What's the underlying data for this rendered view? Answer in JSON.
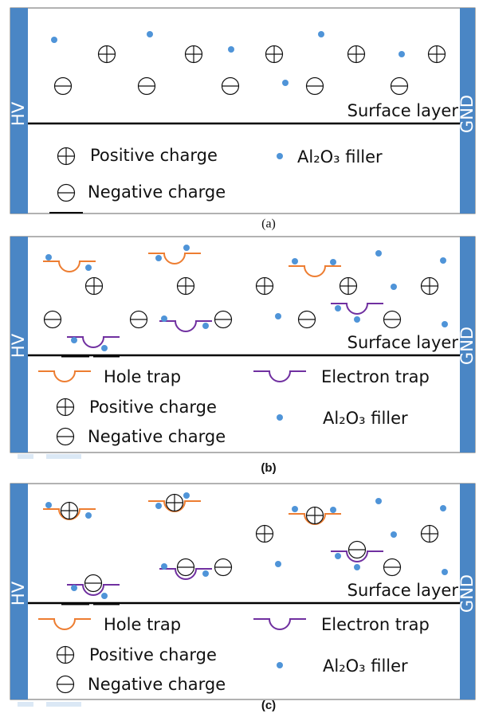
{
  "panels": [
    {
      "caption": "(a)",
      "hv": "HV",
      "gnd": "GND",
      "surface": "Surface layer",
      "legend": {
        "positive": "Positive charge",
        "negative": "Negative charge",
        "filler": "Al₂O₃ filler"
      }
    },
    {
      "caption": "(b)",
      "hv": "HV",
      "gnd": "GND",
      "surface": "Surface layer",
      "legend": {
        "hole_trap": "Hole trap",
        "electron_trap": "Electron trap",
        "positive": "Positive charge",
        "negative": "Negative charge",
        "filler": "Al₂O₃ filler"
      }
    },
    {
      "caption": "(c)",
      "hv": "HV",
      "gnd": "GND",
      "surface": "Surface layer",
      "legend": {
        "hole_trap": "Hole trap",
        "electron_trap": "Electron trap",
        "positive": "Positive charge",
        "negative": "Negative charge",
        "filler": "Al₂O₃ filler"
      }
    }
  ]
}
